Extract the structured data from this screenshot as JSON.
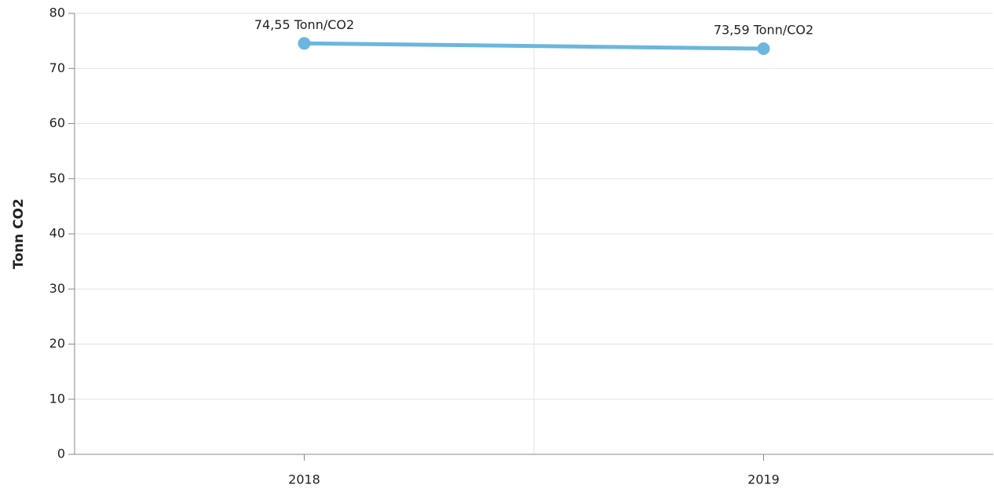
{
  "chart_data": {
    "type": "line",
    "y_label": "Tonn CO2",
    "categories": [
      "2018",
      "2019"
    ],
    "series": [
      {
        "name": "Tonn CO2",
        "color": "#6cb6de",
        "values": [
          74.55,
          73.59
        ],
        "value_labels": [
          "74,55 Tonn/CO2",
          "73,59 Tonn/CO2"
        ]
      }
    ],
    "ylim": [
      0,
      80
    ],
    "yticks": [
      0,
      10,
      20,
      30,
      40,
      50,
      60,
      70,
      80
    ],
    "grid": true
  }
}
